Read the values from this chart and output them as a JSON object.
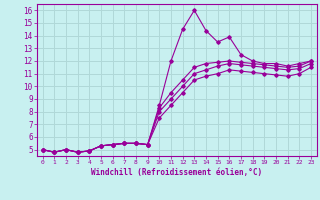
{
  "xlabel": "Windchill (Refroidissement éolien,°C)",
  "background_color": "#c8f0f0",
  "grid_color": "#b0d8d8",
  "line_color": "#990099",
  "xlim": [
    -0.5,
    23.5
  ],
  "ylim": [
    4.5,
    16.5
  ],
  "xticks": [
    0,
    1,
    2,
    3,
    4,
    5,
    6,
    7,
    8,
    9,
    10,
    11,
    12,
    13,
    14,
    15,
    16,
    17,
    18,
    19,
    20,
    21,
    22,
    23
  ],
  "yticks": [
    5,
    6,
    7,
    8,
    9,
    10,
    11,
    12,
    13,
    14,
    15,
    16
  ],
  "series": [
    [
      5.0,
      4.8,
      5.0,
      4.8,
      4.9,
      5.3,
      5.4,
      5.5,
      5.5,
      5.4,
      8.5,
      12.0,
      14.5,
      16.0,
      14.4,
      13.5,
      13.9,
      12.5,
      12.0,
      11.8,
      11.8,
      11.6,
      11.8,
      12.0
    ],
    [
      5.0,
      4.8,
      5.0,
      4.8,
      4.9,
      5.3,
      5.4,
      5.5,
      5.5,
      5.4,
      8.3,
      9.5,
      10.5,
      11.5,
      11.8,
      11.9,
      12.0,
      11.9,
      11.8,
      11.7,
      11.6,
      11.5,
      11.6,
      12.0
    ],
    [
      5.0,
      4.8,
      5.0,
      4.8,
      4.9,
      5.3,
      5.4,
      5.5,
      5.5,
      5.4,
      8.0,
      9.0,
      10.0,
      11.0,
      11.3,
      11.6,
      11.8,
      11.7,
      11.6,
      11.5,
      11.4,
      11.3,
      11.4,
      11.8
    ],
    [
      5.0,
      4.8,
      5.0,
      4.8,
      4.9,
      5.3,
      5.4,
      5.5,
      5.5,
      5.4,
      7.5,
      8.5,
      9.5,
      10.5,
      10.8,
      11.0,
      11.3,
      11.2,
      11.1,
      11.0,
      10.9,
      10.8,
      11.0,
      11.5
    ]
  ]
}
